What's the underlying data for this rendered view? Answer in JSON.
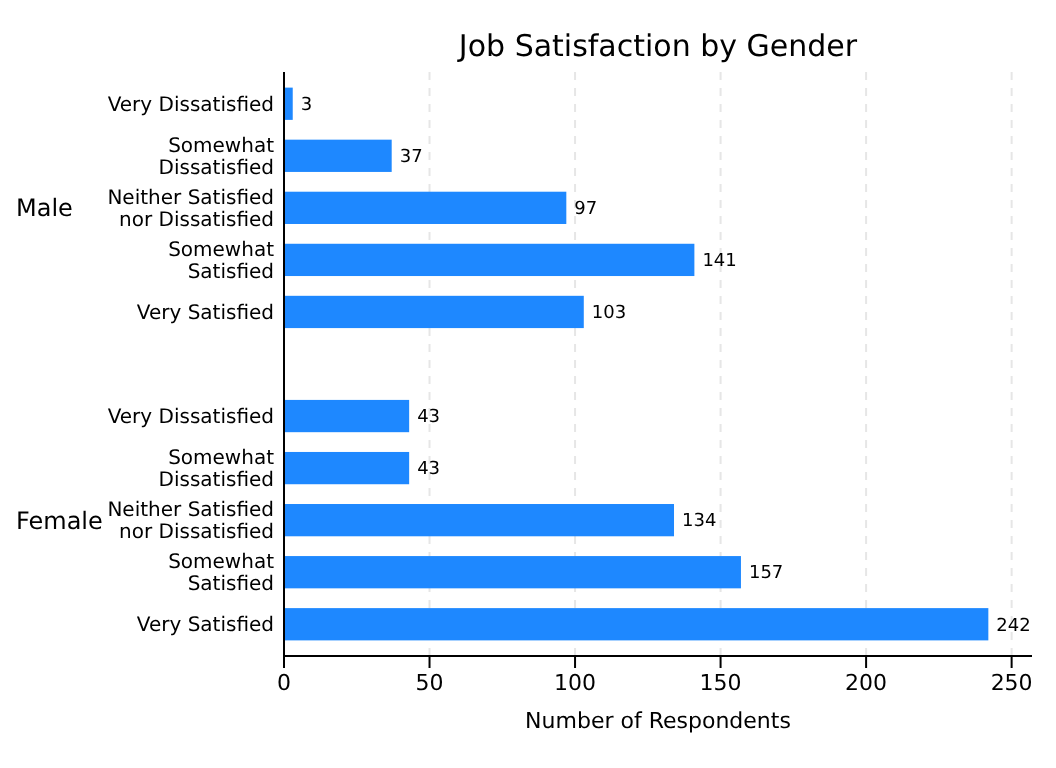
{
  "chart_data": {
    "type": "bar",
    "orientation": "horizontal",
    "title": "Job Satisfaction by Gender",
    "xlabel": "Number of Respondents",
    "categories": [
      "Very Dissatisfied",
      "Somewhat Dissatisfied",
      "Neither Satisfied nor Dissatisfied",
      "Somewhat Satisfied",
      "Very Satisfied",
      null,
      "Very Dissatisfied",
      "Somewhat Dissatisfied",
      "Neither Satisfied nor Dissatisfied",
      "Somewhat Satisfied",
      "Very Satisfied"
    ],
    "values": [
      3,
      37,
      97,
      141,
      103,
      null,
      43,
      43,
      134,
      157,
      242
    ],
    "color": "#1e88ff",
    "annotations": [
      "Male",
      "Female"
    ],
    "xlim": [
      0,
      257
    ],
    "xticks": [
      0,
      50,
      100,
      150,
      200,
      250
    ],
    "grid": "x",
    "data_labels": true
  }
}
